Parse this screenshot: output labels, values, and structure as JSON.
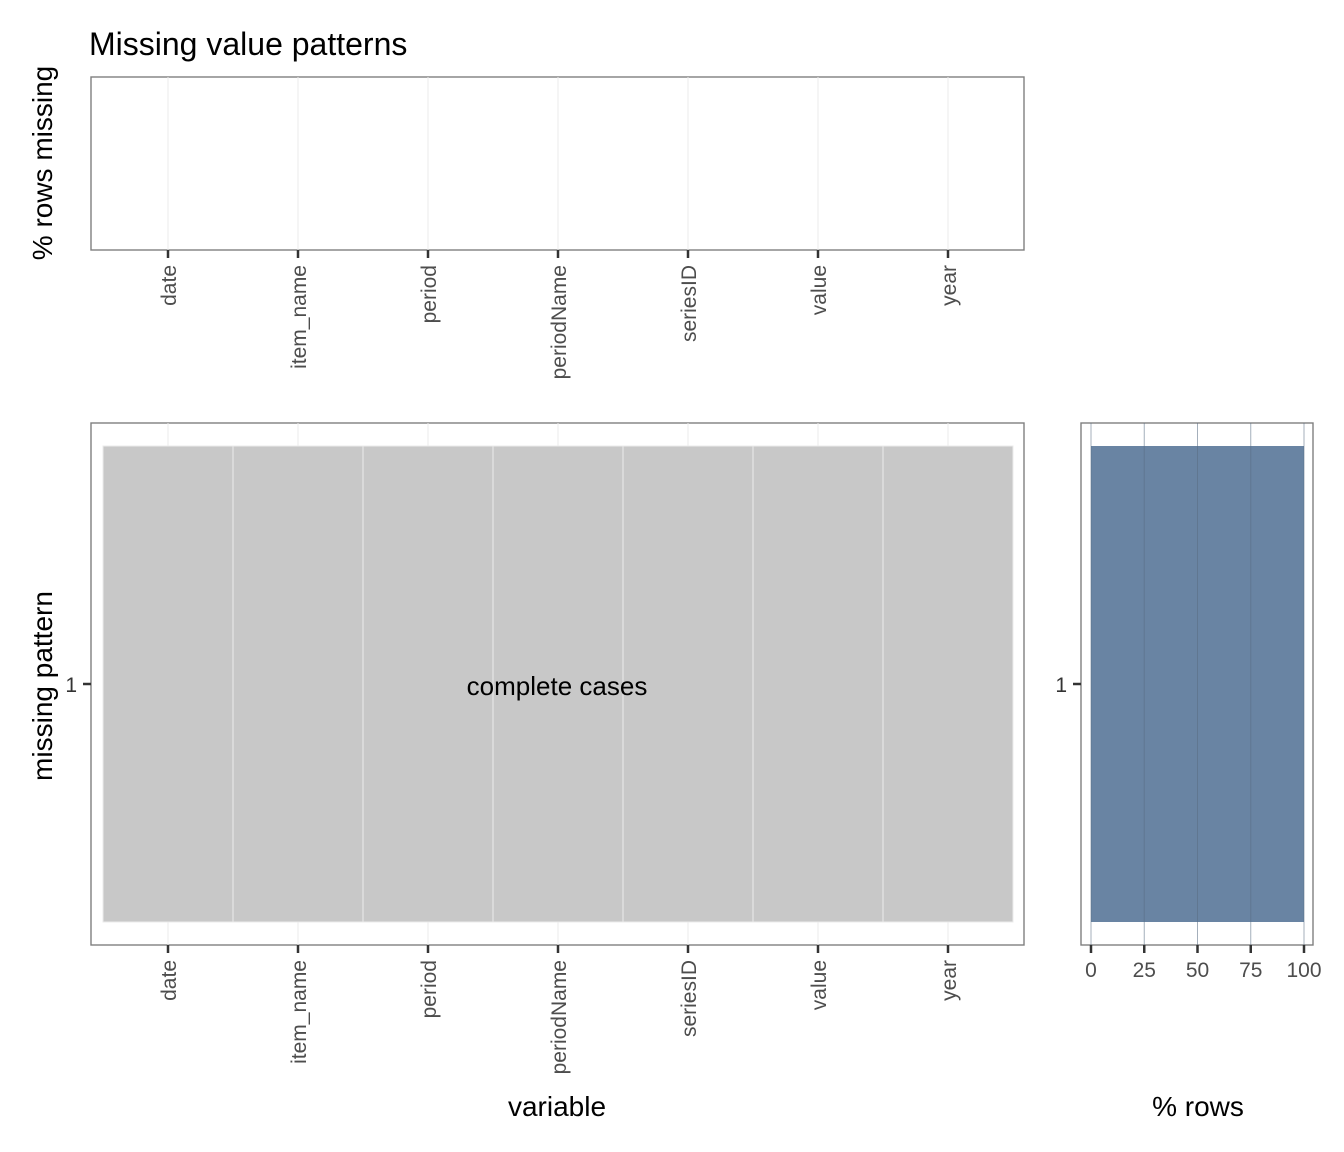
{
  "chart_data": [
    {
      "type": "bar",
      "title": "Missing value patterns",
      "ylabel": "% rows missing",
      "categories": [
        "date",
        "item_name",
        "period",
        "periodName",
        "seriesID",
        "value",
        "year"
      ],
      "values": [
        0,
        0,
        0,
        0,
        0,
        0,
        0
      ],
      "grid": true
    },
    {
      "type": "heatmap",
      "xlabel": "variable",
      "ylabel": "missing pattern",
      "x": [
        "date",
        "item_name",
        "period",
        "periodName",
        "seriesID",
        "value",
        "year"
      ],
      "y": [
        "1"
      ],
      "cells": [
        [
          0,
          0,
          0,
          0,
          0,
          0,
          0
        ]
      ],
      "annotation": "complete cases",
      "colors": {
        "present": "#c8c8c8",
        "missing": "#6984a3"
      }
    },
    {
      "type": "bar",
      "orientation": "horizontal",
      "xlabel": "% rows",
      "categories": [
        "1"
      ],
      "values": [
        100
      ],
      "xlim": [
        0,
        100
      ],
      "xticks": [
        "0",
        "25",
        "50",
        "75",
        "100"
      ],
      "colors": {
        "bar": "#6984a3"
      }
    }
  ]
}
